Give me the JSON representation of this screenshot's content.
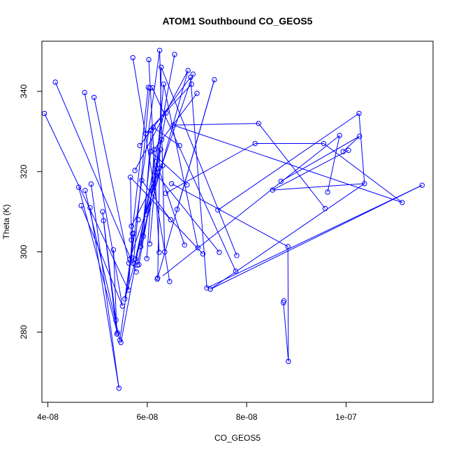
{
  "chart_data": {
    "type": "line",
    "title": "ATOM1 Southbound CO_GEOS5",
    "xlabel": "CO_GEOS5",
    "ylabel": "Theta (K)",
    "xlim": [
      3.88e-08,
      1.175e-07
    ],
    "ylim": [
      262.5,
      352.5
    ],
    "x_ticks": [
      {
        "value": 4e-08,
        "label": "4e-08"
      },
      {
        "value": 6e-08,
        "label": "6e-08"
      },
      {
        "value": 8e-08,
        "label": "8e-08"
      },
      {
        "value": 1e-07,
        "label": "1e-07"
      }
    ],
    "y_ticks": [
      {
        "value": 280,
        "label": "280"
      },
      {
        "value": 300,
        "label": "300"
      },
      {
        "value": 320,
        "label": "320"
      },
      {
        "value": 340,
        "label": "340"
      }
    ],
    "grid": false,
    "legend": "none",
    "series_color": "#0000ff",
    "marker": "open-circle",
    "points": [
      [
        3.93e-08,
        334.5
      ],
      [
        4.15e-08,
        342.3
      ],
      [
        4.62e-08,
        316.1
      ],
      [
        4.67e-08,
        311.5
      ],
      [
        4.74e-08,
        339.7
      ],
      [
        4.75e-08,
        315.3
      ],
      [
        4.85e-08,
        311.0
      ],
      [
        4.87e-08,
        316.9
      ],
      [
        4.93e-08,
        338.5
      ],
      [
        5.1e-08,
        310.0
      ],
      [
        5.12e-08,
        307.8
      ],
      [
        5.32e-08,
        300.5
      ],
      [
        5.37e-08,
        283.0
      ],
      [
        5.39e-08,
        279.5
      ],
      [
        5.4e-08,
        279.8
      ],
      [
        5.43e-08,
        266.0
      ],
      [
        5.45e-08,
        278.0
      ],
      [
        5.47e-08,
        277.4
      ],
      [
        5.5e-08,
        286.5
      ],
      [
        5.55e-08,
        288.3
      ],
      [
        5.62e-08,
        290.5
      ],
      [
        5.63e-08,
        297.2
      ],
      [
        5.65e-08,
        298.2
      ],
      [
        5.66e-08,
        318.6
      ],
      [
        5.68e-08,
        303.0
      ],
      [
        5.68e-08,
        306.4
      ],
      [
        5.69e-08,
        298.5
      ],
      [
        5.7e-08,
        304.5
      ],
      [
        5.71e-08,
        348.4
      ],
      [
        5.72e-08,
        297.1
      ],
      [
        5.73e-08,
        304.6
      ],
      [
        5.75e-08,
        320.3
      ],
      [
        5.76e-08,
        298.2
      ],
      [
        5.78e-08,
        295.0
      ],
      [
        5.8e-08,
        296.7
      ],
      [
        5.82e-08,
        308.0
      ],
      [
        5.83e-08,
        296.8
      ],
      [
        5.85e-08,
        326.5
      ],
      [
        5.87e-08,
        301.3
      ],
      [
        5.89e-08,
        317.8
      ],
      [
        5.92e-08,
        303.9
      ],
      [
        5.97e-08,
        329.5
      ],
      [
        5.98e-08,
        309.4
      ],
      [
        5.99e-08,
        298.3
      ],
      [
        6.02e-08,
        341.0
      ],
      [
        6.03e-08,
        347.9
      ],
      [
        6.05e-08,
        340.8
      ],
      [
        6.05e-08,
        302.0
      ],
      [
        6.07e-08,
        325.0
      ],
      [
        6.08e-08,
        330.3
      ],
      [
        6.1e-08,
        340.9
      ],
      [
        6.12e-08,
        331.0
      ],
      [
        6.14e-08,
        325.5
      ],
      [
        6.16e-08,
        319.8
      ],
      [
        6.18e-08,
        322.5
      ],
      [
        6.2e-08,
        293.2
      ],
      [
        6.21e-08,
        293.5
      ],
      [
        6.23e-08,
        320.8
      ],
      [
        6.24e-08,
        299.9
      ],
      [
        6.25e-08,
        350.2
      ],
      [
        6.27e-08,
        325.5
      ],
      [
        6.28e-08,
        346.0
      ],
      [
        6.29e-08,
        328.0
      ],
      [
        6.31e-08,
        321.5
      ],
      [
        6.33e-08,
        341.8
      ],
      [
        6.35e-08,
        300.0
      ],
      [
        6.37e-08,
        314.6
      ],
      [
        6.38e-08,
        334.6
      ],
      [
        6.45e-08,
        292.6
      ],
      [
        6.47e-08,
        308.0
      ],
      [
        6.49e-08,
        317.0
      ],
      [
        6.52e-08,
        331.6
      ],
      [
        6.55e-08,
        349.2
      ],
      [
        6.6e-08,
        310.6
      ],
      [
        6.65e-08,
        326.5
      ],
      [
        6.75e-08,
        301.7
      ],
      [
        6.8e-08,
        316.7
      ],
      [
        6.82e-08,
        345.2
      ],
      [
        6.87e-08,
        343.5
      ],
      [
        6.89e-08,
        341.8
      ],
      [
        6.92e-08,
        344.3
      ],
      [
        7e-08,
        339.5
      ],
      [
        7.02e-08,
        301.0
      ],
      [
        7.12e-08,
        299.5
      ],
      [
        7.2e-08,
        291.0
      ],
      [
        7.27e-08,
        290.7
      ],
      [
        7.35e-08,
        342.9
      ],
      [
        7.42e-08,
        310.4
      ],
      [
        7.45e-08,
        299.9
      ],
      [
        7.78e-08,
        295.2
      ],
      [
        7.8e-08,
        299.1
      ],
      [
        8.17e-08,
        327.0
      ],
      [
        8.24e-08,
        332.0
      ],
      [
        8.52e-08,
        315.4
      ],
      [
        8.69e-08,
        317.6
      ],
      [
        8.74e-08,
        287.3
      ],
      [
        8.75e-08,
        287.8
      ],
      [
        8.83e-08,
        301.3
      ],
      [
        8.84e-08,
        272.7
      ],
      [
        9.55e-08,
        327.0
      ],
      [
        9.58e-08,
        310.8
      ],
      [
        9.63e-08,
        314.9
      ],
      [
        9.87e-08,
        329.0
      ],
      [
        9.94e-08,
        325.0
      ],
      [
        1.005e-07,
        325.3
      ],
      [
        1.026e-07,
        334.5
      ],
      [
        1.027e-07,
        328.8
      ],
      [
        1.037e-07,
        317.0
      ],
      [
        1.113e-07,
        312.3
      ],
      [
        1.153e-07,
        316.6
      ]
    ],
    "segments": [
      [
        3.93e-08,
        334.5,
        5.62e-08,
        290.5
      ],
      [
        4.15e-08,
        342.3,
        5.78e-08,
        295.0
      ],
      [
        4.74e-08,
        339.7,
        5.5e-08,
        286.5
      ],
      [
        4.62e-08,
        316.1,
        5.4e-08,
        279.8
      ],
      [
        4.85e-08,
        311.0,
        5.43e-08,
        266.0
      ],
      [
        5.32e-08,
        300.5,
        5.39e-08,
        279.5
      ],
      [
        5.1e-08,
        310.0,
        5.37e-08,
        283.0
      ],
      [
        4.93e-08,
        338.5,
        5.63e-08,
        297.2
      ],
      [
        5.71e-08,
        348.4,
        6.45e-08,
        292.6
      ],
      [
        6.03e-08,
        347.9,
        6.24e-08,
        299.9
      ],
      [
        6.25e-08,
        350.2,
        5.45e-08,
        278.0
      ],
      [
        6.55e-08,
        349.2,
        5.47e-08,
        277.4
      ],
      [
        6.82e-08,
        345.2,
        5.55e-08,
        288.3
      ],
      [
        6.92e-08,
        344.3,
        5.65e-08,
        298.2
      ],
      [
        7.35e-08,
        342.9,
        6.2e-08,
        293.2
      ],
      [
        6.33e-08,
        341.8,
        7.02e-08,
        301.0
      ],
      [
        6.1e-08,
        340.9,
        7.78e-08,
        295.2
      ],
      [
        6.28e-08,
        346.0,
        7.8e-08,
        299.1
      ],
      [
        6.52e-08,
        331.6,
        8.24e-08,
        332.0
      ],
      [
        8.24e-08,
        332.0,
        9.58e-08,
        310.8
      ],
      [
        6.37e-08,
        314.6,
        8.17e-08,
        327.0
      ],
      [
        8.17e-08,
        327.0,
        9.55e-08,
        327.0
      ],
      [
        6.49e-08,
        317.0,
        8.83e-08,
        301.3
      ],
      [
        8.83e-08,
        301.3,
        8.84e-08,
        272.7
      ],
      [
        8.84e-08,
        272.7,
        8.74e-08,
        287.3
      ],
      [
        7.27e-08,
        290.7,
        1.037e-07,
        317.0
      ],
      [
        7.2e-08,
        291.0,
        1.153e-07,
        316.6
      ],
      [
        6.31e-08,
        294.0,
        9.87e-08,
        329.0
      ],
      [
        7.42e-08,
        310.4,
        1.026e-07,
        334.5
      ],
      [
        1.026e-07,
        334.5,
        1.037e-07,
        317.0
      ],
      [
        1.037e-07,
        317.0,
        8.52e-08,
        315.4
      ],
      [
        8.52e-08,
        315.4,
        1.005e-07,
        325.3
      ],
      [
        9.55e-08,
        327.0,
        1.113e-07,
        312.3
      ],
      [
        1.027e-07,
        328.8,
        9.94e-08,
        325.0
      ],
      [
        8.69e-08,
        317.6,
        1.027e-07,
        328.8
      ],
      [
        9.63e-08,
        314.9,
        9.87e-08,
        329.0
      ],
      [
        6.52e-08,
        331.6,
        1.113e-07,
        312.3
      ],
      [
        1.153e-07,
        316.6,
        7.27e-08,
        290.7
      ],
      [
        5.66e-08,
        318.6,
        7.12e-08,
        299.5
      ],
      [
        5.85e-08,
        326.5,
        6.87e-08,
        343.5
      ],
      [
        5.97e-08,
        329.5,
        6.89e-08,
        341.8
      ],
      [
        5.75e-08,
        320.3,
        6.82e-08,
        345.2
      ],
      [
        6.14e-08,
        325.5,
        7e-08,
        339.5
      ],
      [
        6.07e-08,
        325.0,
        6.8e-08,
        316.7
      ],
      [
        5.89e-08,
        317.8,
        6.47e-08,
        308.0
      ],
      [
        6.65e-08,
        326.5,
        6.12e-08,
        331.0
      ],
      [
        6.16e-08,
        319.8,
        7.45e-08,
        299.9
      ],
      [
        6.18e-08,
        322.5,
        6.75e-08,
        301.7
      ],
      [
        5.83e-08,
        296.8,
        6.38e-08,
        334.6
      ],
      [
        5.76e-08,
        298.2,
        6.29e-08,
        328.0
      ],
      [
        5.68e-08,
        306.4,
        6.31e-08,
        321.5
      ],
      [
        5.8e-08,
        296.7,
        6.27e-08,
        325.5
      ],
      [
        5.92e-08,
        303.9,
        6.08e-08,
        330.3
      ],
      [
        5.98e-08,
        309.4,
        6.23e-08,
        320.8
      ],
      [
        6.05e-08,
        302.0,
        6.33e-08,
        341.8
      ],
      [
        5.72e-08,
        297.1,
        6.05e-08,
        340.8
      ],
      [
        5.68e-08,
        303.0,
        6.02e-08,
        341.0
      ],
      [
        5.87e-08,
        301.3,
        6.12e-08,
        331.0
      ],
      [
        5.99e-08,
        298.3,
        6.14e-08,
        325.5
      ],
      [
        6.35e-08,
        300.0,
        6.25e-08,
        350.2
      ],
      [
        6.21e-08,
        293.5,
        6.28e-08,
        346.0
      ],
      [
        6.6e-08,
        310.6,
        7.35e-08,
        342.9
      ],
      [
        6.87e-08,
        343.5,
        7.2e-08,
        291.0
      ],
      [
        5.55e-08,
        288.3,
        5.73e-08,
        304.6
      ],
      [
        5.62e-08,
        290.5,
        5.7e-08,
        304.5
      ],
      [
        5.66e-08,
        318.6,
        5.69e-08,
        298.5
      ],
      [
        4.87e-08,
        316.9,
        5.43e-08,
        266.0
      ],
      [
        4.75e-08,
        315.3,
        5.45e-08,
        278.0
      ],
      [
        4.67e-08,
        311.5,
        5.5e-08,
        286.5
      ],
      [
        5.12e-08,
        307.8,
        5.39e-08,
        279.5
      ]
    ]
  }
}
